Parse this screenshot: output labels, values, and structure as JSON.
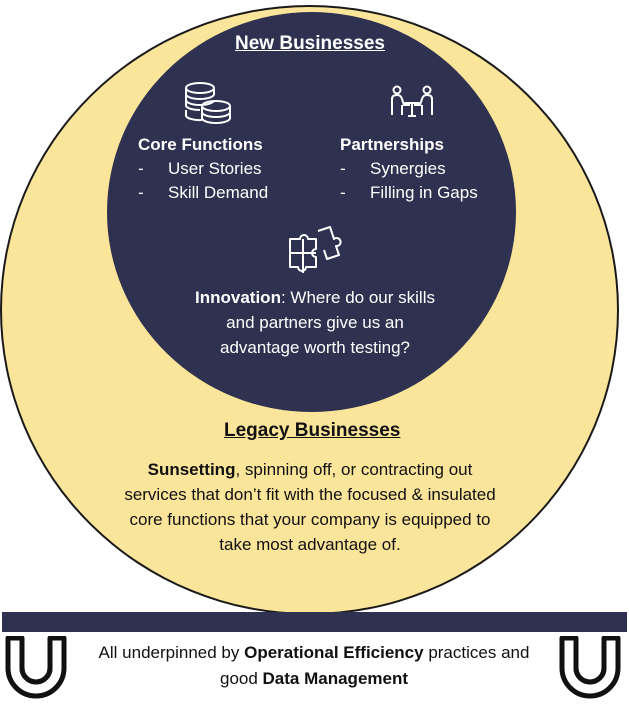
{
  "new_businesses": {
    "title": "New Businesses",
    "core_functions": {
      "heading": "Core Functions",
      "items": [
        "User Stories",
        "Skill Demand"
      ]
    },
    "partnerships": {
      "heading": "Partnerships",
      "items": [
        "Synergies",
        "Filling in Gaps"
      ]
    },
    "innovation": {
      "bold": "Innovation",
      "rest": ": Where do our skills and partners give us an advantage worth testing?"
    }
  },
  "legacy_businesses": {
    "title": "Legacy Businesses",
    "bold": "Sunsetting",
    "rest": ", spinning off, or contracting out services that don’t fit with the focused & insulated core functions that your company is equipped to take most advantage of."
  },
  "footer": {
    "prefix": "All underpinned by ",
    "bold1": "Operational Efficiency",
    "middle": " practices and good ",
    "bold2": "Data Management"
  },
  "icons": {
    "coins": "coins-icon",
    "meeting": "meeting-icon",
    "puzzle": "puzzle-icon",
    "magnet": "magnet-icon"
  },
  "colors": {
    "navy": "#2f3150",
    "yellow": "#fbe59a"
  }
}
